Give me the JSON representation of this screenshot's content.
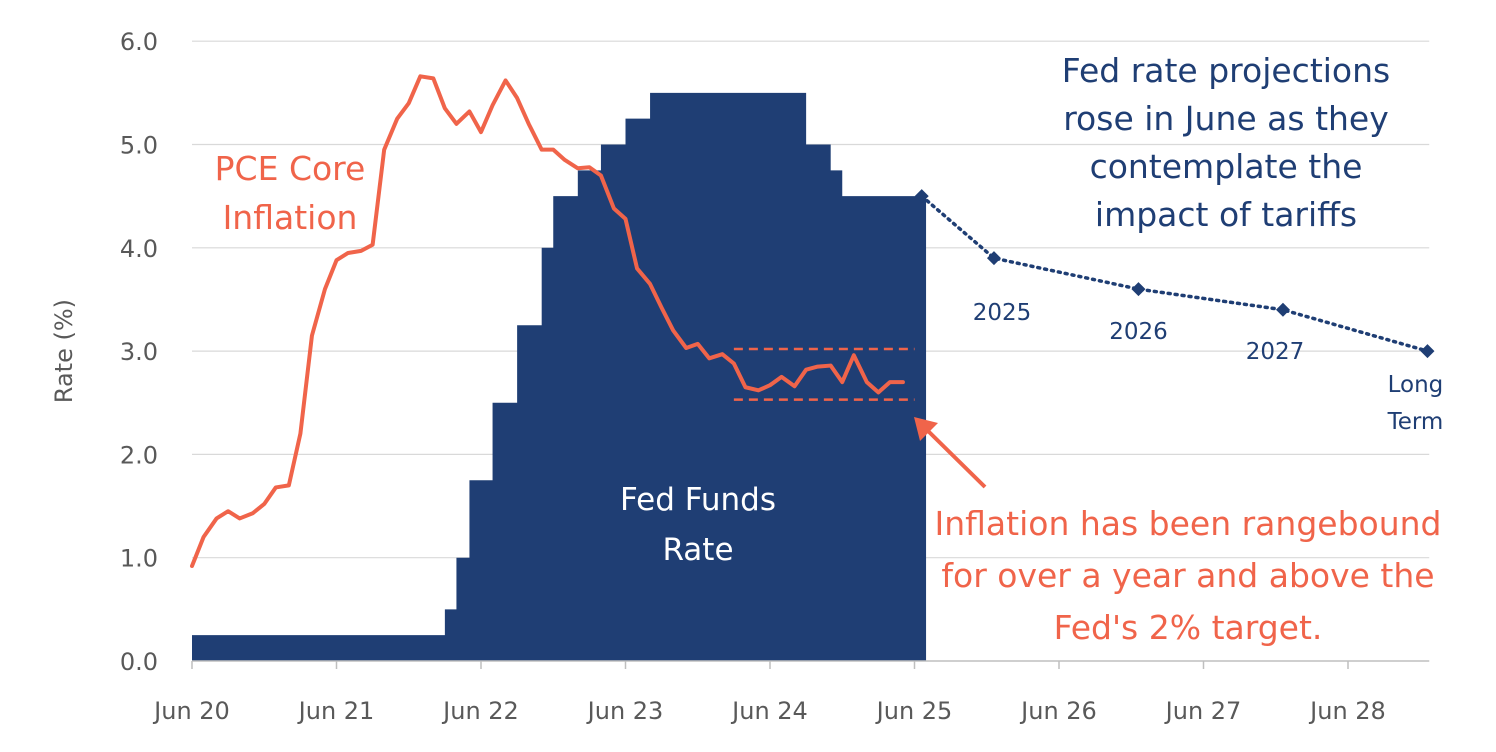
{
  "colors": {
    "fed": "#1f3e74",
    "pce": "#f0644a",
    "grid": "#d9d9d9",
    "axis": "#595959"
  },
  "chart_data": {
    "type": "line",
    "title": "",
    "ylabel": "Rate (%)",
    "xlabel": "",
    "ylim": [
      0,
      6
    ],
    "yticks": [
      "0.0",
      "1.0",
      "2.0",
      "3.0",
      "4.0",
      "5.0",
      "6.0"
    ],
    "xlim": [
      0,
      8.5
    ],
    "xticks": [
      "Jun 20",
      "Jun 21",
      "Jun 22",
      "Jun 23",
      "Jun 24",
      "Jun 25",
      "Jun 26",
      "Jun 27",
      "Jun 28"
    ],
    "series": [
      {
        "name": "Fed Funds Rate",
        "style": "step-area",
        "label_lines": [
          "Fed Funds",
          "Rate"
        ],
        "steps": [
          [
            0.0,
            0.25
          ],
          [
            1.75,
            0.5
          ],
          [
            1.83,
            1.0
          ],
          [
            1.92,
            1.75
          ],
          [
            2.08,
            2.5
          ],
          [
            2.25,
            3.25
          ],
          [
            2.42,
            4.0
          ],
          [
            2.5,
            4.5
          ],
          [
            2.67,
            4.75
          ],
          [
            2.83,
            5.0
          ],
          [
            3.0,
            5.25
          ],
          [
            3.17,
            5.5
          ],
          [
            4.25,
            5.0
          ],
          [
            4.42,
            4.75
          ],
          [
            4.5,
            4.5
          ]
        ],
        "end_x": 5.08
      },
      {
        "name": "PCE Core Inflation",
        "style": "line",
        "label_lines": [
          "PCE Core",
          "Inflation"
        ],
        "x": [
          0.0,
          0.08,
          0.17,
          0.25,
          0.33,
          0.42,
          0.5,
          0.58,
          0.67,
          0.75,
          0.83,
          0.92,
          1.0,
          1.08,
          1.17,
          1.25,
          1.33,
          1.42,
          1.5,
          1.58,
          1.67,
          1.75,
          1.83,
          1.92,
          2.0,
          2.08,
          2.17,
          2.25,
          2.33,
          2.42,
          2.5,
          2.58,
          2.67,
          2.75,
          2.83,
          2.92,
          3.0,
          3.08,
          3.17,
          3.25,
          3.33,
          3.42,
          3.5,
          3.58,
          3.67,
          3.75,
          3.83,
          3.92,
          4.0,
          4.08,
          4.17,
          4.25,
          4.33,
          4.42,
          4.5,
          4.58,
          4.67,
          4.75,
          4.83,
          4.92
        ],
        "values": [
          0.92,
          1.2,
          1.38,
          1.45,
          1.38,
          1.43,
          1.52,
          1.68,
          1.7,
          2.2,
          3.15,
          3.6,
          3.88,
          3.95,
          3.97,
          4.03,
          4.95,
          5.25,
          5.4,
          5.66,
          5.64,
          5.35,
          5.2,
          5.32,
          5.12,
          5.38,
          5.62,
          5.45,
          5.2,
          4.95,
          4.95,
          4.85,
          4.77,
          4.78,
          4.7,
          4.38,
          4.28,
          3.8,
          3.65,
          3.42,
          3.2,
          3.03,
          3.07,
          2.93,
          2.97,
          2.88,
          2.65,
          2.62,
          2.67,
          2.75,
          2.66,
          2.82,
          2.85,
          2.86,
          2.7,
          2.96,
          2.7,
          2.6,
          2.7,
          2.7
        ]
      },
      {
        "name": "Fed rate projections",
        "style": "dotted-line-markers",
        "x": [
          5.05,
          5.55,
          6.55,
          7.55,
          8.55
        ],
        "values": [
          4.5,
          3.9,
          3.6,
          3.4,
          3.0
        ],
        "point_labels": [
          "",
          "2025",
          "2026",
          "2027",
          "Long Term"
        ]
      }
    ],
    "reference_lines": [
      {
        "style": "dashed",
        "x_start": 3.75,
        "x_end": 5.0,
        "value": 3.02
      },
      {
        "style": "dashed",
        "x_start": 3.75,
        "x_end": 5.0,
        "value": 2.53
      }
    ],
    "annotations": {
      "projections_note": [
        "Fed rate projections",
        "rose in June as they",
        "contemplate the",
        "impact of tariffs"
      ],
      "inflation_note": [
        "Inflation has been rangebound",
        "for over a year and above the",
        "Fed's 2% target."
      ]
    }
  }
}
